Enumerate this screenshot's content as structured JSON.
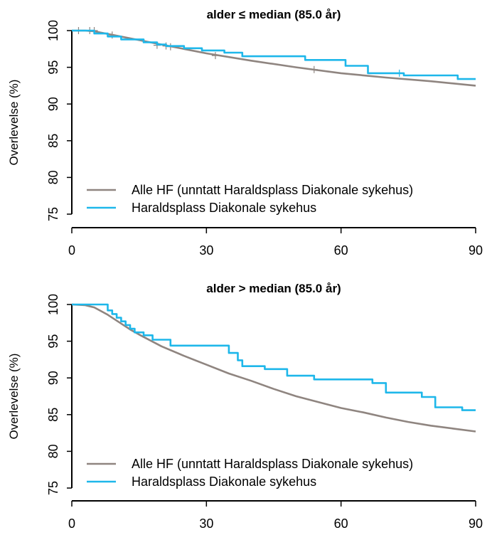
{
  "chart_data": [
    {
      "type": "line",
      "title": "alder ≤ median (85.0 år)",
      "ylabel": "Overlevelse (%)",
      "xlabel": "",
      "xlim": [
        0,
        90
      ],
      "ylim": [
        75,
        100
      ],
      "xticks": [
        "0",
        "30",
        "60",
        "90"
      ],
      "yticks": [
        "75",
        "80",
        "85",
        "90",
        "95",
        "100"
      ],
      "legend_position": "bottom-right",
      "series": [
        {
          "name": "Alle HF (unntatt Haraldsplass Diakonale sykehus)",
          "color": "#8f8580",
          "step": false,
          "x": [
            0,
            3,
            5,
            10,
            15,
            20,
            25,
            30,
            40,
            50,
            60,
            70,
            80,
            90
          ],
          "y": [
            100,
            100,
            99.9,
            99.3,
            98.7,
            98.1,
            97.5,
            96.9,
            95.9,
            95.0,
            94.2,
            93.6,
            93.1,
            92.5
          ],
          "censor_marks": [
            {
              "x": 1.5,
              "y": 100
            },
            {
              "x": 4,
              "y": 100
            },
            {
              "x": 5,
              "y": 100
            },
            {
              "x": 9,
              "y": 99.4
            },
            {
              "x": 19,
              "y": 98.0
            },
            {
              "x": 21,
              "y": 97.9
            },
            {
              "x": 22,
              "y": 97.8
            },
            {
              "x": 32,
              "y": 96.6
            },
            {
              "x": 54,
              "y": 94.7
            }
          ]
        },
        {
          "name": "Haraldsplass Diakonale sykehus",
          "color": "#1eb7ea",
          "step": true,
          "x": [
            0,
            5,
            8,
            11,
            16,
            19,
            21,
            25,
            29,
            34,
            38,
            52,
            61,
            66,
            74,
            86,
            90
          ],
          "y": [
            100,
            99.6,
            99.2,
            98.8,
            98.4,
            98.1,
            97.9,
            97.6,
            97.3,
            97.0,
            96.5,
            96.0,
            95.2,
            94.2,
            93.9,
            93.4,
            93.4
          ],
          "censor_marks": [
            {
              "x": 73,
              "y": 94.2
            }
          ]
        }
      ]
    },
    {
      "type": "line",
      "title": "alder > median (85.0 år)",
      "ylabel": "Overlevelse (%)",
      "xlabel": "",
      "xlim": [
        0,
        90
      ],
      "ylim": [
        75,
        100
      ],
      "xticks": [
        "0",
        "30",
        "60",
        "90"
      ],
      "yticks": [
        "75",
        "80",
        "85",
        "90",
        "95",
        "100"
      ],
      "legend_position": "bottom-right",
      "series": [
        {
          "name": "Alle HF (unntatt Haraldsplass Diakonale sykehus)",
          "color": "#8f8580",
          "step": false,
          "x": [
            0,
            3,
            5,
            8,
            10,
            13,
            15,
            20,
            25,
            30,
            35,
            40,
            45,
            50,
            55,
            60,
            65,
            70,
            75,
            80,
            85,
            90
          ],
          "y": [
            100,
            99.9,
            99.6,
            98.6,
            97.8,
            96.6,
            95.9,
            94.3,
            93.0,
            91.8,
            90.6,
            89.6,
            88.5,
            87.5,
            86.7,
            85.9,
            85.3,
            84.6,
            84.0,
            83.5,
            83.1,
            82.7
          ],
          "censor_marks": []
        },
        {
          "name": "Haraldsplass Diakonale sykehus",
          "color": "#1eb7ea",
          "step": true,
          "x": [
            0,
            8,
            9,
            10,
            11,
            12,
            13,
            14,
            16,
            18,
            22,
            35,
            37,
            38,
            43,
            48,
            54,
            67,
            70,
            78,
            81,
            87,
            90
          ],
          "y": [
            100,
            99.2,
            98.7,
            98.2,
            97.7,
            97.2,
            96.7,
            96.2,
            95.8,
            95.2,
            94.4,
            93.4,
            92.4,
            91.6,
            91.2,
            90.3,
            89.8,
            89.3,
            88.0,
            87.4,
            86.0,
            85.6,
            85.6
          ],
          "censor_marks": []
        }
      ]
    }
  ]
}
